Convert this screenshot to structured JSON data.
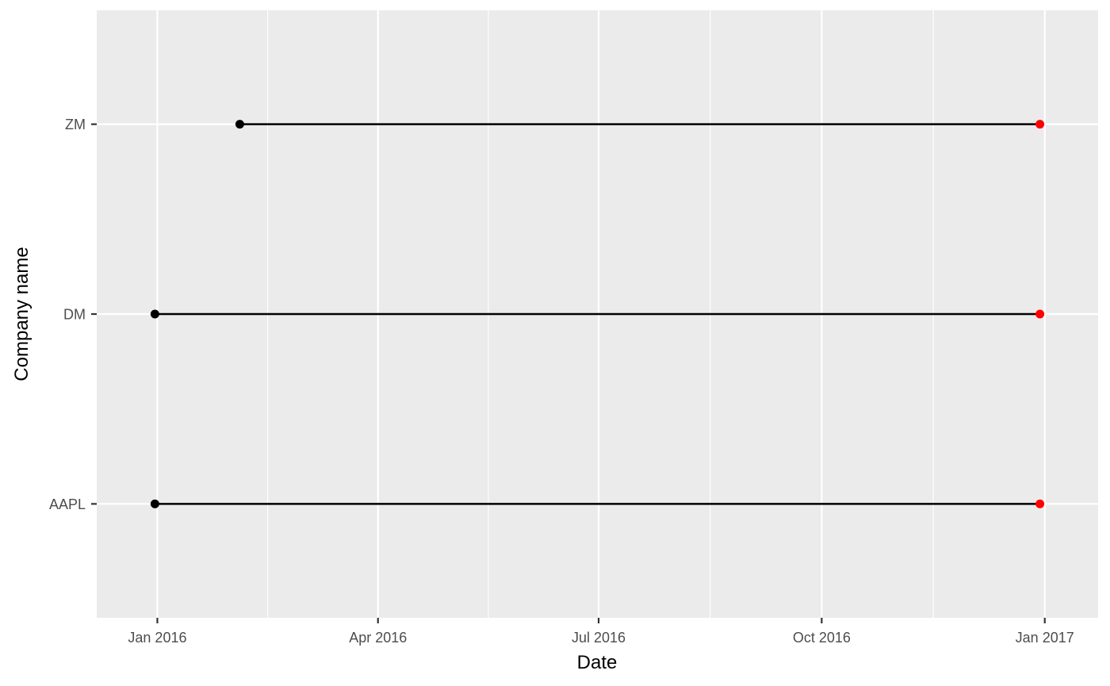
{
  "chart_data": {
    "type": "dumbbell",
    "xlabel": "Date",
    "ylabel": "Company name",
    "x_axis_type": "date",
    "xlim": [
      "2015-12-07",
      "2017-01-23"
    ],
    "x_ticks": [
      {
        "date": "2016-01-01",
        "label": "Jan 2016"
      },
      {
        "date": "2016-04-01",
        "label": "Apr 2016"
      },
      {
        "date": "2016-07-01",
        "label": "Jul 2016"
      },
      {
        "date": "2016-10-01",
        "label": "Oct 2016"
      },
      {
        "date": "2017-01-01",
        "label": "Jan 2017"
      }
    ],
    "categories": [
      "AAPL",
      "DM",
      "ZM"
    ],
    "segments": [
      {
        "company": "AAPL",
        "start": "2015-12-31",
        "end": "2016-12-30"
      },
      {
        "company": "DM",
        "start": "2015-12-31",
        "end": "2016-12-30"
      },
      {
        "company": "ZM",
        "start": "2016-02-04",
        "end": "2016-12-30"
      }
    ],
    "grid": true,
    "colors": {
      "panel_background": "#ebebeb",
      "gridline": "#ffffff",
      "segment": "#000000",
      "start_point": "#000000",
      "end_point": "#ff0000",
      "tick_label": "#4d4d4d",
      "tick_mark": "#333333"
    }
  }
}
